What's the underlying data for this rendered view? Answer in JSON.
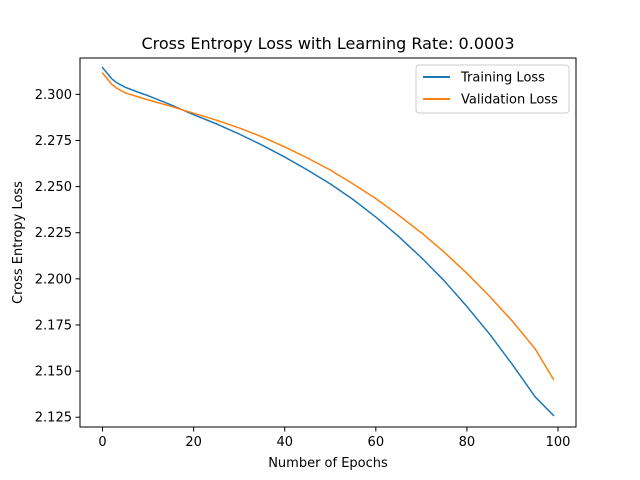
{
  "chart_data": {
    "type": "line",
    "title": "Cross Entropy Loss with Learning Rate: 0.0003",
    "xlabel": "Number of Epochs",
    "ylabel": "Cross Entropy Loss",
    "xlim": [
      -4.95,
      103.95
    ],
    "ylim": [
      2.1197,
      2.3197
    ],
    "xticks": [
      0,
      20,
      40,
      60,
      80,
      100
    ],
    "xtick_labels": [
      "0",
      "20",
      "40",
      "60",
      "80",
      "100"
    ],
    "yticks": [
      2.125,
      2.15,
      2.175,
      2.2,
      2.225,
      2.25,
      2.275,
      2.3
    ],
    "ytick_labels": [
      "2.125",
      "2.150",
      "2.175",
      "2.200",
      "2.225",
      "2.250",
      "2.275",
      "2.300"
    ],
    "grid": false,
    "legend_position": "top-right",
    "series": [
      {
        "name": "Training Loss",
        "color": "#1f77b4",
        "x": [
          0,
          1,
          2,
          3,
          5,
          8,
          10,
          15,
          20,
          25,
          30,
          35,
          40,
          45,
          50,
          55,
          60,
          65,
          70,
          75,
          80,
          85,
          90,
          95,
          99
        ],
        "y": [
          2.3145,
          2.3115,
          2.3085,
          2.3065,
          2.3038,
          2.301,
          2.2993,
          2.2943,
          2.289,
          2.284,
          2.2785,
          2.2725,
          2.266,
          2.259,
          2.2515,
          2.243,
          2.2335,
          2.223,
          2.2115,
          2.199,
          2.185,
          2.17,
          2.1535,
          2.136,
          2.126
        ]
      },
      {
        "name": "Validation Loss",
        "color": "#ff7f0e",
        "x": [
          0,
          1,
          2,
          3,
          5,
          8,
          10,
          15,
          20,
          25,
          30,
          35,
          40,
          45,
          50,
          55,
          60,
          65,
          70,
          75,
          80,
          85,
          90,
          95,
          99
        ],
        "y": [
          2.3115,
          2.3085,
          2.3055,
          2.3035,
          2.3008,
          2.2985,
          2.297,
          2.2935,
          2.2898,
          2.286,
          2.2818,
          2.277,
          2.2715,
          2.2655,
          2.259,
          2.2515,
          2.2435,
          2.2345,
          2.225,
          2.2145,
          2.203,
          2.1905,
          2.177,
          2.162,
          2.1455
        ]
      }
    ]
  }
}
